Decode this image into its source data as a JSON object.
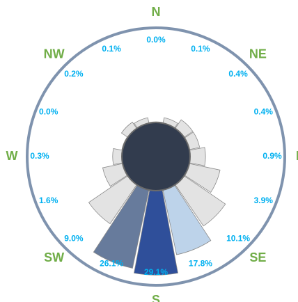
{
  "chart_data": {
    "type": "polar-bar",
    "categories": [
      "N",
      null,
      "NE",
      null,
      "E",
      null,
      "SE",
      null,
      "S",
      null,
      "SW",
      null,
      "W",
      null,
      "NW",
      null
    ],
    "values": [
      0.0,
      0.1,
      0.4,
      0.4,
      0.9,
      3.9,
      10.1,
      17.8,
      29.1,
      26.1,
      9.0,
      1.6,
      0.3,
      0.0,
      0.2,
      0.1
    ],
    "value_labels": [
      "0.0%",
      "0.1%",
      "0.4%",
      "0.4%",
      "0.9%",
      "3.9%",
      "10.1%",
      "17.8%",
      "29.1%",
      "26.1%",
      "9.0%",
      "1.6%",
      "0.3%",
      "0.0%",
      "0.2%",
      "0.1%"
    ],
    "colors": [
      "#e3e3e3",
      "#e3e3e3",
      "#e3e3e3",
      "#e3e3e3",
      "#e3e3e3",
      "#e3e3e3",
      "#e3e3e3",
      "#bdd3ea",
      "#2f4f9a",
      "#677b9c",
      "#e3e3e3",
      "#e3e3e3",
      "#e3e3e3",
      "#e3e3e3",
      "#e3e3e3",
      "#e3e3e3"
    ]
  }
}
